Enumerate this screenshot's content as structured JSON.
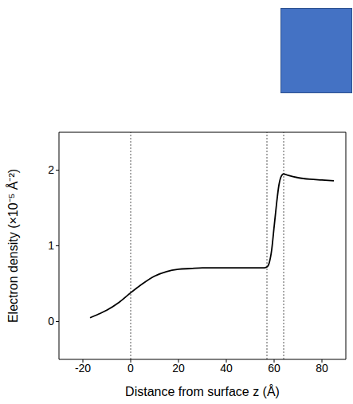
{
  "chart_data": {
    "type": "line",
    "x_label": "Distance from surface z (Å)",
    "y_label": "Electron density (×10⁻⁵ Å⁻²)",
    "x": [
      -17,
      -14,
      -10,
      -5,
      0,
      5,
      10,
      15,
      20,
      25,
      30,
      40,
      50,
      56,
      57,
      58,
      59,
      60,
      61,
      62,
      63,
      64,
      65,
      66,
      70,
      75,
      80,
      85
    ],
    "series": [
      {
        "name": "Electron density",
        "color": "#000000",
        "values": [
          0.05,
          0.09,
          0.15,
          0.25,
          0.38,
          0.5,
          0.6,
          0.66,
          0.69,
          0.7,
          0.71,
          0.71,
          0.71,
          0.71,
          0.72,
          0.78,
          0.95,
          1.25,
          1.55,
          1.8,
          1.92,
          1.95,
          1.94,
          1.93,
          1.9,
          1.88,
          1.87,
          1.86
        ]
      }
    ],
    "xlim": [
      -30,
      90
    ],
    "xticks": [
      -20,
      0,
      20,
      40,
      60,
      80
    ],
    "ylim": [
      -0.5,
      2.5
    ],
    "yticks": [
      0,
      1,
      2
    ],
    "vlines": [
      0,
      57,
      64
    ],
    "grid": false
  }
}
